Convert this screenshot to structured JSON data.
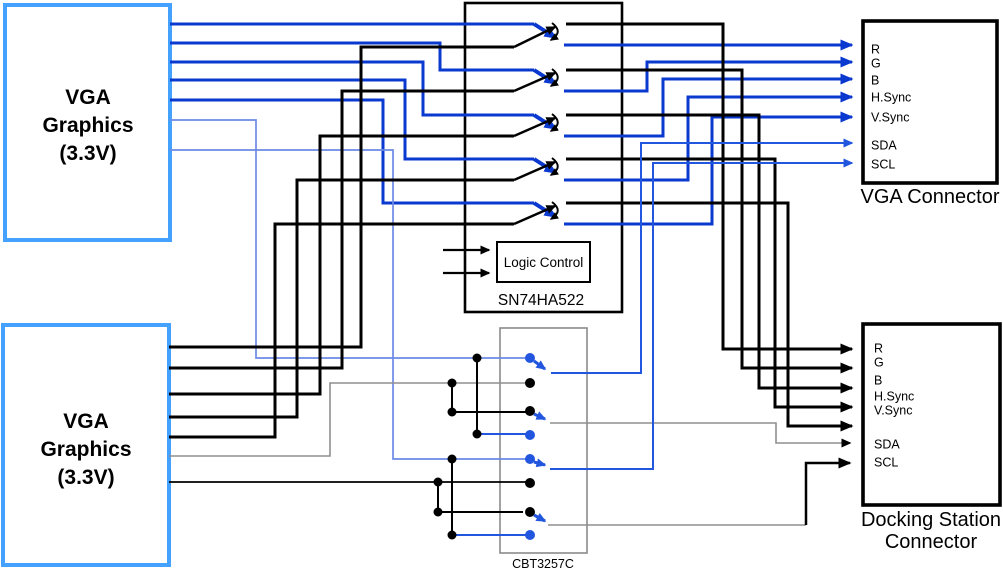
{
  "diagram": {
    "blocks": {
      "vga_graphics_top": {
        "label_lines": [
          "VGA",
          "Graphics",
          "(3.3V)"
        ]
      },
      "vga_graphics_bottom": {
        "label_lines": [
          "VGA",
          "Graphics",
          "(3.3V)"
        ]
      },
      "mux": {
        "label": "SN74HA522",
        "logic_control_label": "Logic Control",
        "switch_count": 5
      },
      "ddc_switch": {
        "label": "CBT3257C",
        "switch_count": 4
      },
      "vga_connector": {
        "label": "VGA Connector",
        "pins": [
          "R",
          "G",
          "B",
          "H.Sync",
          "V.Sync",
          "SDA",
          "SCL"
        ]
      },
      "docking_connector": {
        "label_lines": [
          "Docking Station",
          "Connector"
        ],
        "pins": [
          "R",
          "G",
          "B",
          "H.Sync",
          "V.Sync",
          "SDA",
          "SCL"
        ]
      }
    },
    "colors": {
      "vga_box_border": "#44a1ff",
      "wire_blue_thick": "#0a39cf",
      "wire_blue_medium": "#2356df",
      "wire_blue_light": "#6c8ae6",
      "wire_gray": "#8f8f8f",
      "wire_black": "#000000"
    }
  }
}
